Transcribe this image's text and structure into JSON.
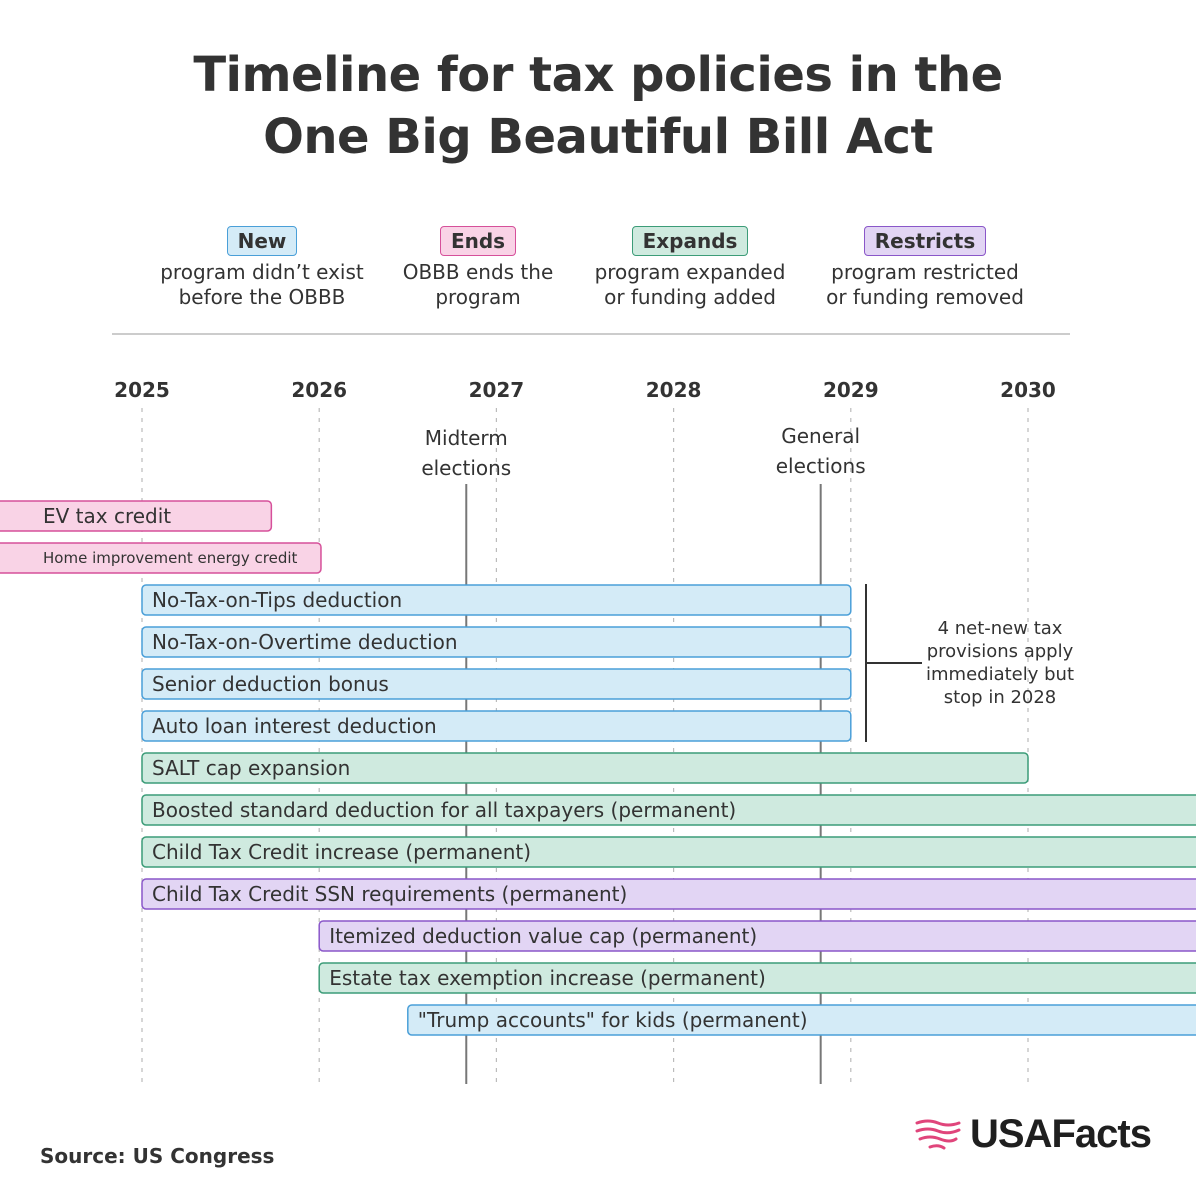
{
  "title_line1": "Timeline for tax policies in the",
  "title_line2": "One Big Beautiful Bill Act",
  "legend": [
    {
      "key": "new",
      "label": "New",
      "desc": "program didn’t exist\nbefore the OBBB",
      "fill": "#d4ebf7",
      "stroke": "#4a9fd8"
    },
    {
      "key": "ends",
      "label": "Ends",
      "desc": "OBBB ends the\nprogram",
      "fill": "#f9d3e6",
      "stroke": "#d6509a"
    },
    {
      "key": "expands",
      "label": "Expands",
      "desc": "program expanded\nor funding added",
      "fill": "#cfeadf",
      "stroke": "#3c9c78"
    },
    {
      "key": "restricts",
      "label": "Restricts",
      "desc": "program restricted\nor funding removed",
      "fill": "#e2d5f4",
      "stroke": "#8a57c9"
    }
  ],
  "chart_data": {
    "type": "timeline",
    "x_ticks": [
      "2025",
      "2026",
      "2027",
      "2028",
      "2029",
      "2030"
    ],
    "x_range": [
      2025,
      2030
    ],
    "markers": [
      {
        "label_line1": "Midterm",
        "label_line2": "elections",
        "x": 2026.83
      },
      {
        "label_line1": "General",
        "label_line2": "elections",
        "x": 2028.83
      }
    ],
    "bars": [
      {
        "label": "EV tax credit",
        "start": null,
        "end": 2025.73,
        "category": "ends",
        "small": false
      },
      {
        "label": "Home improvement energy credit",
        "start": null,
        "end": 2026.01,
        "category": "ends",
        "small": true
      },
      {
        "label": "No-Tax-on-Tips deduction",
        "start": 2025,
        "end": 2029,
        "category": "new",
        "small": false
      },
      {
        "label": "No-Tax-on-Overtime deduction",
        "start": 2025,
        "end": 2029,
        "category": "new",
        "small": false
      },
      {
        "label": "Senior deduction bonus",
        "start": 2025,
        "end": 2029,
        "category": "new",
        "small": false
      },
      {
        "label": "Auto loan interest deduction",
        "start": 2025,
        "end": 2029,
        "category": "new",
        "small": false
      },
      {
        "label": "SALT cap expansion",
        "start": 2025,
        "end": 2030,
        "category": "expands",
        "small": false
      },
      {
        "label": "Boosted standard deduction for all taxpayers (permanent)",
        "start": 2025,
        "end": null,
        "category": "expands",
        "small": false
      },
      {
        "label": "Child Tax Credit increase (permanent)",
        "start": 2025,
        "end": null,
        "category": "expands",
        "small": false
      },
      {
        "label": "Child Tax Credit SSN requirements (permanent)",
        "start": 2025,
        "end": null,
        "category": "restricts",
        "small": false
      },
      {
        "label": "Itemized deduction value cap (permanent)",
        "start": 2026,
        "end": null,
        "category": "restricts",
        "small": false
      },
      {
        "label": "Estate tax exemption increase (permanent)",
        "start": 2026,
        "end": null,
        "category": "expands",
        "small": false
      },
      {
        "label": "\"Trump accounts\" for kids (permanent)",
        "start": 2026.5,
        "end": null,
        "category": "new",
        "small": false
      }
    ],
    "annotation": {
      "lines": [
        "4 net-new tax",
        "provisions apply",
        "immediately but",
        "stop in 2028"
      ],
      "bar_indices": [
        2,
        3,
        4,
        5
      ]
    }
  },
  "source_label": "Source:",
  "source_text": "US Congress",
  "brand": "USAFacts",
  "colors": {
    "text": "#333333",
    "grid": "#bbbbbb",
    "marker": "#777777",
    "brand_accent": "#e0457b"
  }
}
